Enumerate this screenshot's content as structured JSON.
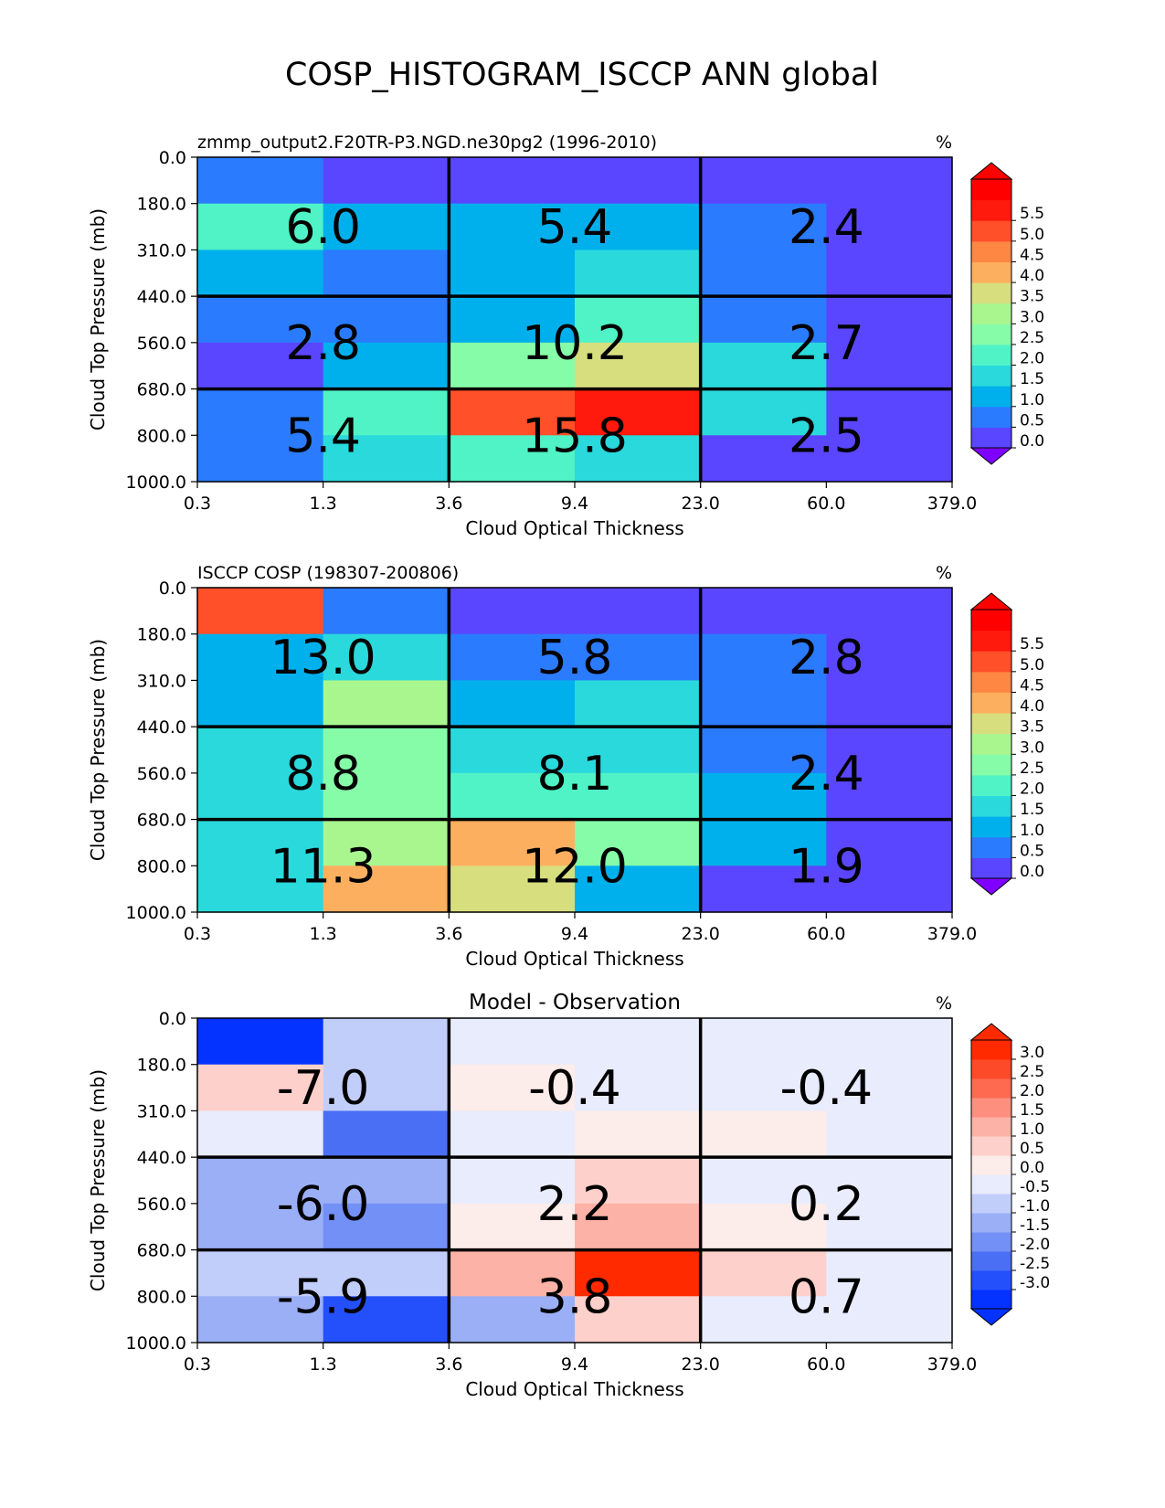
{
  "figure_title": "COSP_HISTOGRAM_ISCCP ANN global",
  "chart_data": [
    {
      "type": "heatmap",
      "title_left": "zmmp_output2.F20TR-P3.NGD.ne30pg2 (1996-2010)",
      "title_center": "",
      "units": "%",
      "xlabel": "Cloud Optical Thickness",
      "ylabel": "Cloud Top Pressure (mb)",
      "x_ticks": [
        "0.3",
        "1.3",
        "3.6",
        "9.4",
        "23.0",
        "60.0",
        "379.0"
      ],
      "y_ticks": [
        "0.0",
        "180.0",
        "310.0",
        "440.0",
        "560.0",
        "680.0",
        "800.0",
        "1000.0"
      ],
      "values": [
        [
          0.8,
          0.3,
          0.3,
          0.3,
          0.3,
          0.3
        ],
        [
          2.0,
          1.3,
          1.3,
          1.3,
          0.8,
          0.3
        ],
        [
          1.3,
          0.8,
          1.3,
          1.8,
          0.8,
          0.3
        ],
        [
          0.8,
          0.8,
          1.3,
          2.3,
          0.8,
          0.3
        ],
        [
          0.3,
          1.3,
          2.8,
          3.8,
          1.8,
          0.3
        ],
        [
          0.8,
          2.3,
          5.3,
          5.8,
          1.8,
          0.3
        ],
        [
          0.8,
          1.8,
          2.3,
          1.8,
          0.3,
          0.3
        ]
      ],
      "block_labels": [
        [
          "6.0",
          "5.4",
          "2.4"
        ],
        [
          "2.8",
          "10.2",
          "2.7"
        ],
        [
          "5.4",
          "15.8",
          "2.5"
        ]
      ],
      "colorbar": {
        "ticks": [
          "5.5",
          "5.0",
          "4.5",
          "4.0",
          "3.5",
          "3.0",
          "2.5",
          "2.0",
          "1.5",
          "1.0",
          "0.5",
          "0.0"
        ],
        "colors": [
          "#5a46ff",
          "#2b7bff",
          "#00b0ec",
          "#2ad9db",
          "#4ff3c6",
          "#86fca9",
          "#a9f68f",
          "#d7de7e",
          "#fdaf60",
          "#ff8744",
          "#ff5029",
          "#ff1a0d",
          "#ff0000"
        ],
        "under": "#7f00ff",
        "over": "#ff0000",
        "vmin": 0.0,
        "vmax": 6.0,
        "bin": 0.5
      }
    },
    {
      "type": "heatmap",
      "title_left": "ISCCP COSP (198307-200806)",
      "title_center": "",
      "units": "%",
      "xlabel": "Cloud Optical Thickness",
      "ylabel": "Cloud Top Pressure (mb)",
      "x_ticks": [
        "0.3",
        "1.3",
        "3.6",
        "9.4",
        "23.0",
        "60.0",
        "379.0"
      ],
      "y_ticks": [
        "0.0",
        "180.0",
        "310.0",
        "440.0",
        "560.0",
        "680.0",
        "800.0",
        "1000.0"
      ],
      "values": [
        [
          5.3,
          0.8,
          0.3,
          0.3,
          0.3,
          0.3
        ],
        [
          1.3,
          1.8,
          0.8,
          0.8,
          0.8,
          0.3
        ],
        [
          1.3,
          3.3,
          1.3,
          1.8,
          0.8,
          0.3
        ],
        [
          1.8,
          2.8,
          1.8,
          1.8,
          0.8,
          0.3
        ],
        [
          1.8,
          2.8,
          2.3,
          2.3,
          1.3,
          0.3
        ],
        [
          1.8,
          3.3,
          4.3,
          2.8,
          1.3,
          0.3
        ],
        [
          1.8,
          4.3,
          3.8,
          1.3,
          0.3,
          0.3
        ]
      ],
      "block_labels": [
        [
          "13.0",
          "5.8",
          "2.8"
        ],
        [
          "8.8",
          "8.1",
          "2.4"
        ],
        [
          "11.3",
          "12.0",
          "1.9"
        ]
      ],
      "colorbar": {
        "ticks": [
          "5.5",
          "5.0",
          "4.5",
          "4.0",
          "3.5",
          "3.0",
          "2.5",
          "2.0",
          "1.5",
          "1.0",
          "0.5",
          "0.0"
        ],
        "colors": [
          "#5a46ff",
          "#2b7bff",
          "#00b0ec",
          "#2ad9db",
          "#4ff3c6",
          "#86fca9",
          "#a9f68f",
          "#d7de7e",
          "#fdaf60",
          "#ff8744",
          "#ff5029",
          "#ff1a0d",
          "#ff0000"
        ],
        "under": "#7f00ff",
        "over": "#ff0000",
        "vmin": 0.0,
        "vmax": 6.0,
        "bin": 0.5
      }
    },
    {
      "type": "heatmap",
      "title_left": "",
      "title_center": "Model - Observation",
      "units": "%",
      "xlabel": "Cloud Optical Thickness",
      "ylabel": "Cloud Top Pressure (mb)",
      "x_ticks": [
        "0.3",
        "1.3",
        "3.6",
        "9.4",
        "23.0",
        "60.0",
        "379.0"
      ],
      "y_ticks": [
        "0.0",
        "180.0",
        "310.0",
        "440.0",
        "560.0",
        "680.0",
        "800.0",
        "1000.0"
      ],
      "values": [
        [
          -3.2,
          -0.8,
          -0.1,
          -0.1,
          -0.1,
          -0.1
        ],
        [
          0.7,
          -0.8,
          0.2,
          -0.1,
          -0.1,
          -0.1
        ],
        [
          -0.1,
          -2.3,
          -0.1,
          0.2,
          0.2,
          -0.1
        ],
        [
          -1.3,
          -1.3,
          -0.1,
          0.7,
          -0.1,
          -0.1
        ],
        [
          -1.3,
          -1.8,
          0.2,
          1.2,
          0.2,
          -0.1
        ],
        [
          -0.8,
          -0.8,
          1.2,
          3.2,
          0.7,
          -0.1
        ],
        [
          -1.3,
          -2.8,
          -1.3,
          0.7,
          -0.1,
          -0.1
        ]
      ],
      "block_labels": [
        [
          "-7.0",
          "-0.4",
          "-0.4"
        ],
        [
          "-6.0",
          "2.2",
          "0.2"
        ],
        [
          "-5.9",
          "3.8",
          "0.7"
        ]
      ],
      "colorbar": {
        "ticks": [
          "3.0",
          "2.5",
          "2.0",
          "1.5",
          "1.0",
          "0.5",
          "0.0",
          "-0.5",
          "-1.0",
          "-1.5",
          "-2.0",
          "-2.5",
          "-3.0"
        ],
        "colors": [
          "#0432ff",
          "#2450fc",
          "#4a6ef4",
          "#7290f5",
          "#9aaff6",
          "#c2cefa",
          "#e8ecfc",
          "#fcecea",
          "#fdd0cb",
          "#fcb2a6",
          "#fc8f7d",
          "#fd6a50",
          "#fd4a28",
          "#ff2a00"
        ],
        "under": "#0432ff",
        "over": "#ff2a00",
        "vmin": -3.5,
        "vmax": 3.5,
        "bin": 0.5
      }
    }
  ]
}
